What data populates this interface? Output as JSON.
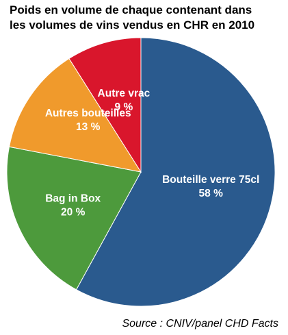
{
  "chart_data": {
    "type": "pie",
    "title_lines": [
      "Poids en volume de chaque contenant dans",
      "les volumes de vins vendus en CHR en 2010"
    ],
    "slices": [
      {
        "label": "Bouteille verre 75cl",
        "value": 58,
        "value_label": "58 %",
        "color": "#2a5a8e"
      },
      {
        "label": "Bag in Box",
        "value": 20,
        "value_label": "20 %",
        "color": "#4d9a3c"
      },
      {
        "label": "Autres bouteilles",
        "value": 13,
        "value_label": "13 %",
        "color": "#f09a2c"
      },
      {
        "label": "Autre vrac",
        "value": 9,
        "value_label": "9 %",
        "color": "#d9162c"
      }
    ],
    "source": "Source : CNIV/panel CHD Facts"
  }
}
